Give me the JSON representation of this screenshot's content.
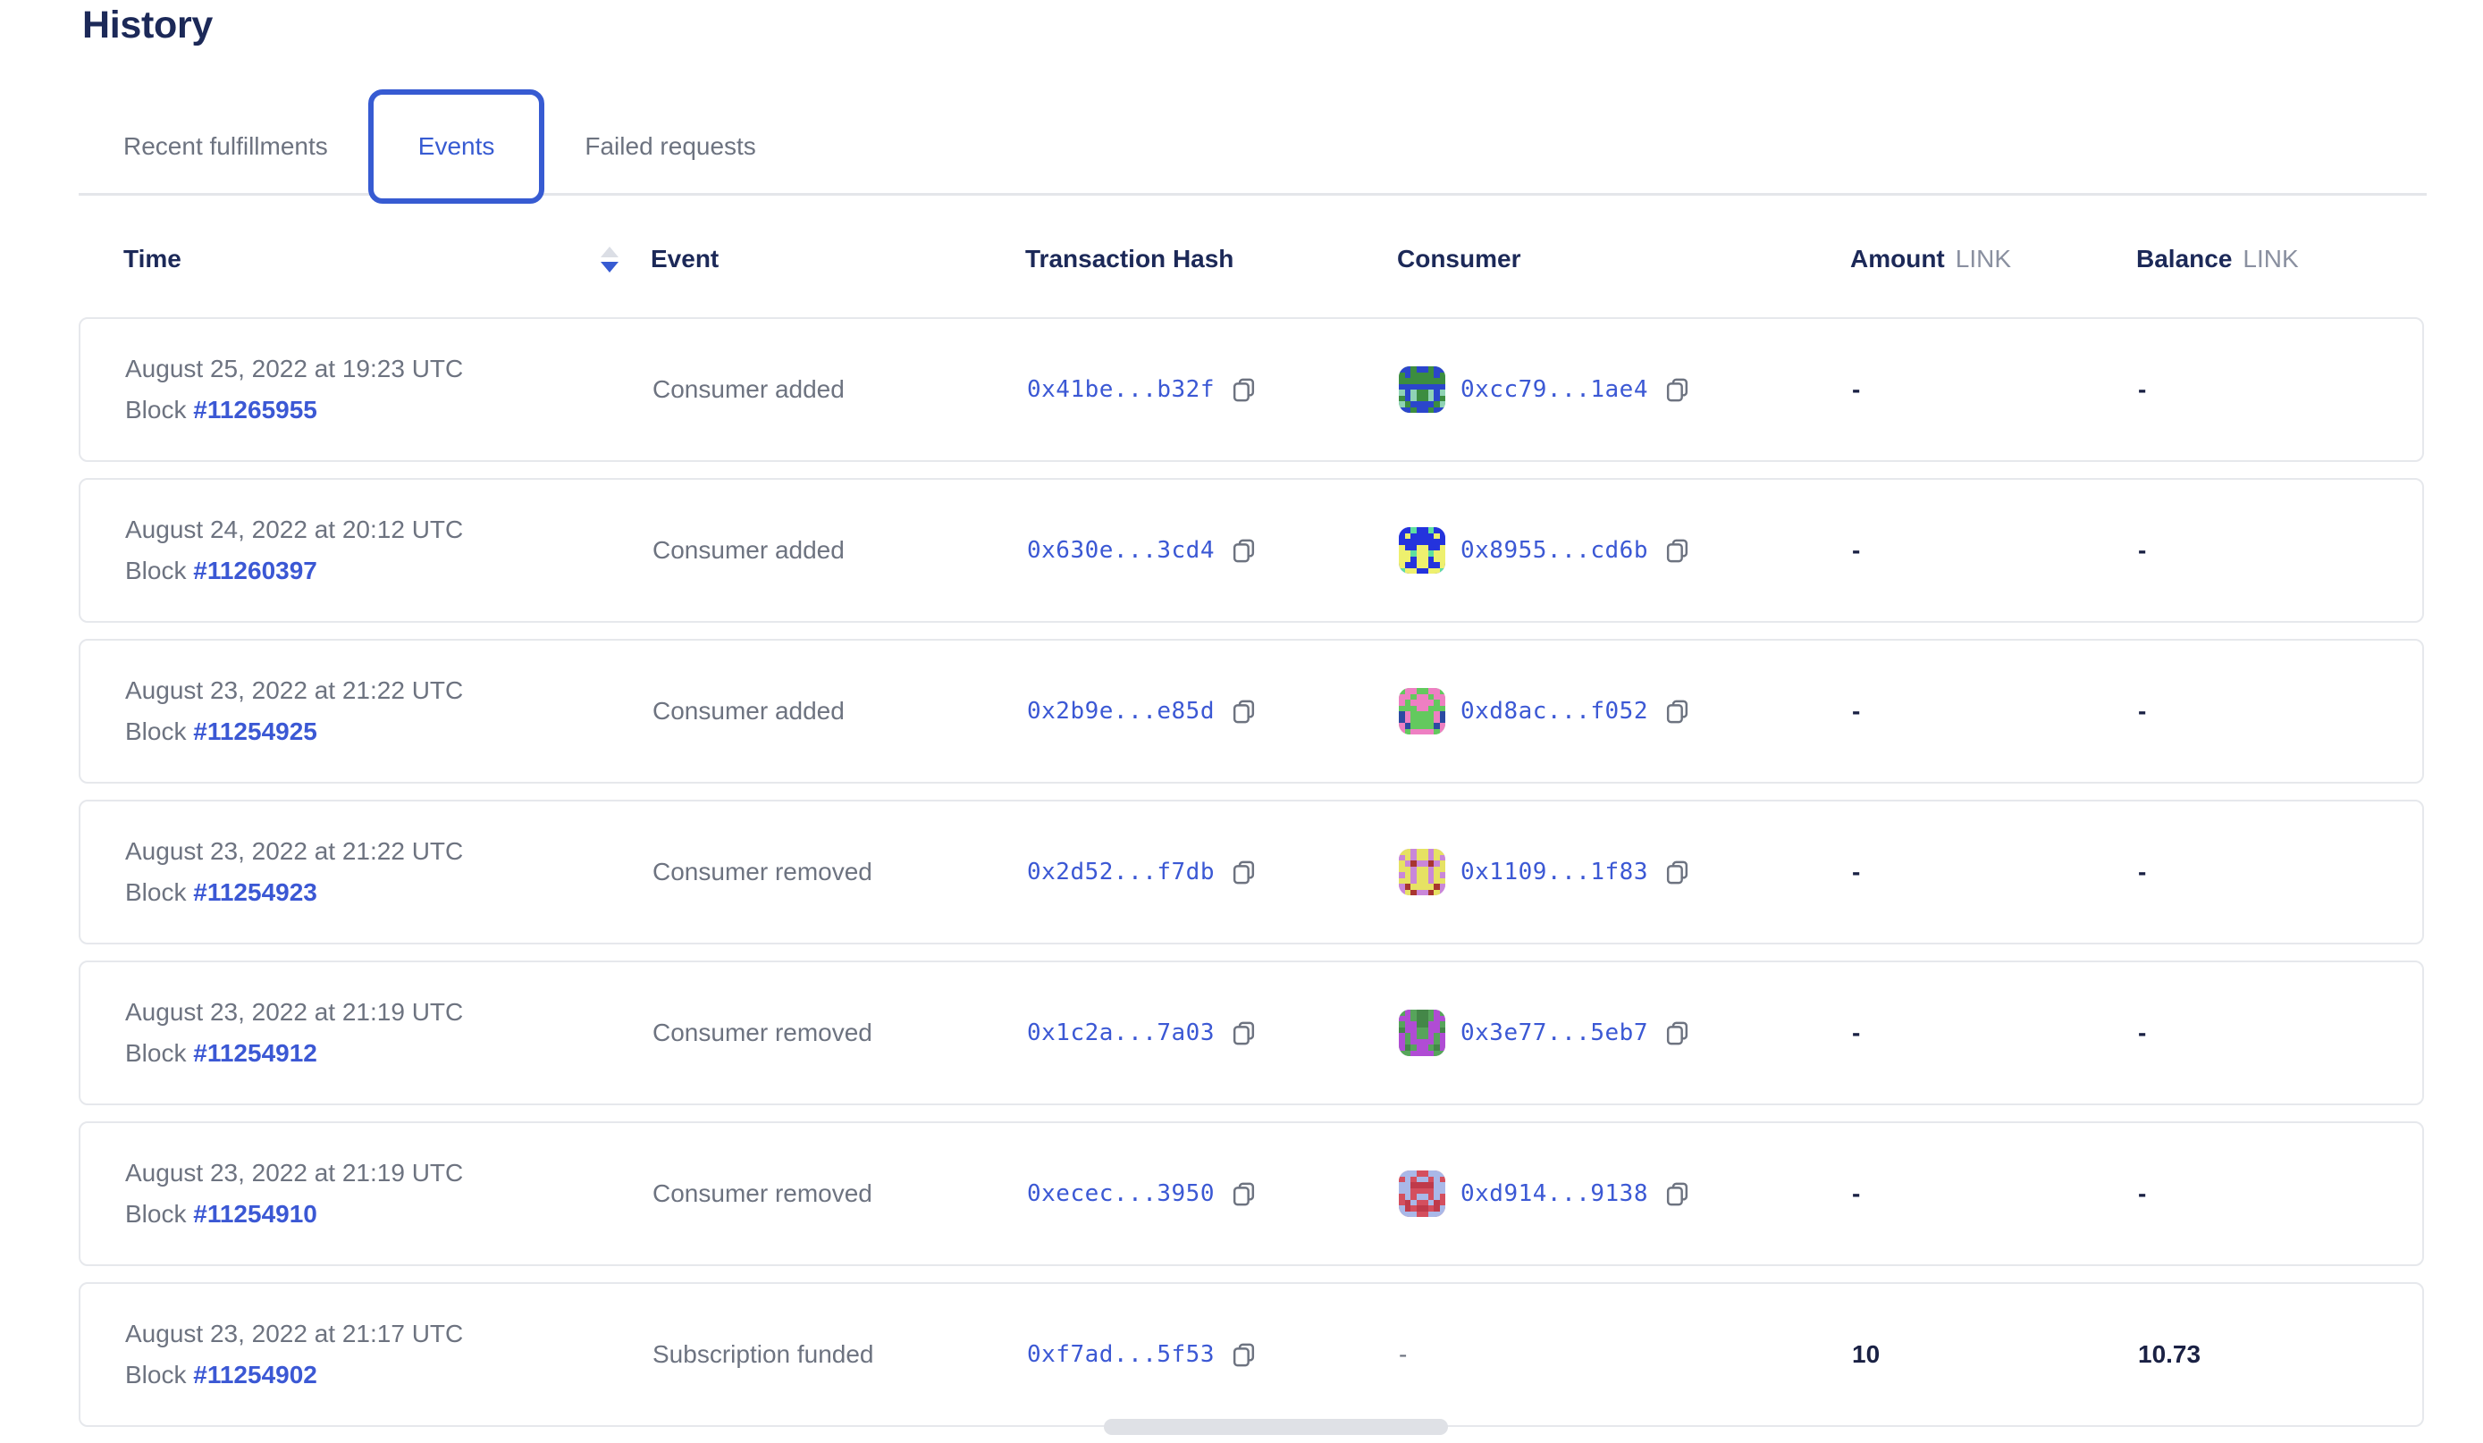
{
  "page": {
    "title": "History"
  },
  "tabs": [
    {
      "label": "Recent fulfillments",
      "active": false
    },
    {
      "label": "Events",
      "active": true
    },
    {
      "label": "Failed requests",
      "active": false
    }
  ],
  "colors": {
    "accent_blue": "#375bd2",
    "link_blue": "#3b58d4",
    "heading_navy": "#1c2958",
    "body_gray": "#6d7380",
    "border_gray": "#e6e8ec",
    "sort_inactive": "#dbdee5"
  },
  "table": {
    "columns": {
      "time": "Time",
      "event": "Event",
      "tx": "Transaction Hash",
      "consumer": "Consumer",
      "amount": "Amount",
      "amount_unit": "LINK",
      "balance": "Balance",
      "balance_unit": "LINK"
    },
    "sort": {
      "column": "time",
      "direction": "desc"
    },
    "rows": [
      {
        "date": "August 25, 2022 at 19:23 UTC",
        "block_label": "Block",
        "block": "#11265955",
        "event": "Consumer added",
        "tx": "0x41be...b32f",
        "consumer": "0xcc79...1ae4",
        "identicon": {
          "bg": "#3c8d40",
          "fg": "#2b46cc",
          "spot": "#8fd3b5"
        },
        "amount": "-",
        "balance": "-"
      },
      {
        "date": "August 24, 2022 at 20:12 UTC",
        "block_label": "Block",
        "block": "#11260397",
        "event": "Consumer added",
        "tx": "0x630e...3cd4",
        "consumer": "0x8955...cd6b",
        "identicon": {
          "bg": "#2433dd",
          "fg": "#eef06e",
          "spot": "#5fdf9f"
        },
        "amount": "-",
        "balance": "-"
      },
      {
        "date": "August 23, 2022 at 21:22 UTC",
        "block_label": "Block",
        "block": "#11254925",
        "event": "Consumer added",
        "tx": "0x2b9e...e85d",
        "consumer": "0xd8ac...f052",
        "identicon": {
          "bg": "#63c95e",
          "fg": "#ee7fc2",
          "spot": "#2b4aa2"
        },
        "amount": "-",
        "balance": "-"
      },
      {
        "date": "August 23, 2022 at 21:22 UTC",
        "block_label": "Block",
        "block": "#11254923",
        "event": "Consumer removed",
        "tx": "0x2d52...f7db",
        "consumer": "0x1109...1f83",
        "identicon": {
          "bg": "#c987d9",
          "fg": "#e6e263",
          "spot": "#a8352f"
        },
        "amount": "-",
        "balance": "-"
      },
      {
        "date": "August 23, 2022 at 21:19 UTC",
        "block_label": "Block",
        "block": "#11254912",
        "event": "Consumer removed",
        "tx": "0x1c2a...7a03",
        "consumer": "0x3e77...5eb7",
        "identicon": {
          "bg": "#57a45b",
          "fg": "#b04cd4",
          "spot": "#448748"
        },
        "amount": "-",
        "balance": "-"
      },
      {
        "date": "August 23, 2022 at 21:19 UTC",
        "block_label": "Block",
        "block": "#11254910",
        "event": "Consumer removed",
        "tx": "0xecec...3950",
        "consumer": "0xd914...9138",
        "identicon": {
          "bg": "#d44f5e",
          "fg": "#a9b8e8",
          "spot": "#bf3a4a"
        },
        "amount": "-",
        "balance": "-"
      },
      {
        "date": "August 23, 2022 at 21:17 UTC",
        "block_label": "Block",
        "block": "#11254902",
        "event": "Subscription funded",
        "tx": "0xf7ad...5f53",
        "consumer": "-",
        "identicon": null,
        "amount": "10",
        "balance": "10.73"
      }
    ]
  }
}
